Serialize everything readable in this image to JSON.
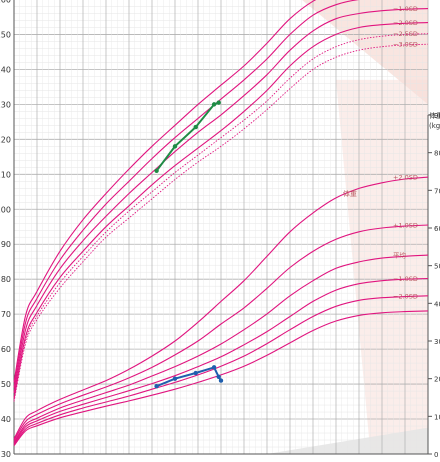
{
  "chart_data": {
    "type": "line",
    "left_axis": {
      "label": "",
      "unit": "",
      "range": [
        30,
        165
      ],
      "ticks": [
        30,
        40,
        50,
        60,
        70,
        80,
        90,
        100,
        110,
        120,
        130,
        140,
        150,
        160
      ]
    },
    "right_axis": {
      "label": "体重",
      "unit": "(kg)",
      "range": [
        0,
        95
      ],
      "ticks": [
        0,
        10,
        20,
        30,
        40,
        50,
        60,
        70,
        80,
        90
      ]
    },
    "x_axis": {
      "label": "",
      "range": [
        0,
        18
      ],
      "tick_labels_visible": false
    },
    "height_curves": [
      {
        "name": "+1.0SD",
        "points": [
          [
            0,
            50.5
          ],
          [
            0.5,
            69.5
          ],
          [
            1,
            76.5
          ],
          [
            2,
            88
          ],
          [
            3,
            97
          ],
          [
            4,
            104.5
          ],
          [
            5,
            111.5
          ],
          [
            6,
            118
          ],
          [
            7,
            124
          ],
          [
            8,
            130
          ],
          [
            9,
            135.5
          ],
          [
            10,
            141
          ],
          [
            11,
            147.5
          ],
          [
            12,
            154.5
          ],
          [
            13,
            159.5
          ],
          [
            14,
            162.5
          ],
          [
            15,
            163.8
          ],
          [
            16,
            164.2
          ],
          [
            17,
            164.5
          ],
          [
            18,
            164.6
          ]
        ]
      },
      {
        "name": "平均",
        "points": [
          [
            0,
            49
          ],
          [
            0.5,
            67.5
          ],
          [
            1,
            74.5
          ],
          [
            2,
            85.5
          ],
          [
            3,
            94
          ],
          [
            4,
            101.5
          ],
          [
            5,
            108
          ],
          [
            6,
            114.5
          ],
          [
            7,
            120.5
          ],
          [
            8,
            126
          ],
          [
            9,
            131.5
          ],
          [
            10,
            137
          ],
          [
            11,
            143
          ],
          [
            12,
            150
          ],
          [
            13,
            155.5
          ],
          [
            14,
            158.5
          ],
          [
            15,
            160
          ],
          [
            16,
            160.5
          ],
          [
            17,
            161
          ],
          [
            18,
            161
          ]
        ]
      },
      {
        "name": "−1.0SD",
        "points": [
          [
            0,
            47.5
          ],
          [
            0.5,
            65.5
          ],
          [
            1,
            72.5
          ],
          [
            2,
            83
          ],
          [
            3,
            91
          ],
          [
            4,
            98
          ],
          [
            5,
            104.5
          ],
          [
            6,
            110.5
          ],
          [
            7,
            116.5
          ],
          [
            8,
            122
          ],
          [
            9,
            127
          ],
          [
            10,
            132.5
          ],
          [
            11,
            138.5
          ],
          [
            12,
            145.5
          ],
          [
            13,
            151
          ],
          [
            14,
            154.5
          ],
          [
            15,
            156
          ],
          [
            16,
            156.8
          ],
          [
            17,
            157.2
          ],
          [
            18,
            157.4
          ]
        ]
      },
      {
        "name": "−2.0SD",
        "points": [
          [
            0,
            46
          ],
          [
            0.5,
            63.5
          ],
          [
            1,
            70.5
          ],
          [
            2,
            80.5
          ],
          [
            3,
            88
          ],
          [
            4,
            95
          ],
          [
            5,
            101
          ],
          [
            6,
            107
          ],
          [
            7,
            112.5
          ],
          [
            8,
            117.5
          ],
          [
            9,
            122.5
          ],
          [
            10,
            128
          ],
          [
            11,
            134
          ],
          [
            12,
            141
          ],
          [
            13,
            146.5
          ],
          [
            14,
            150
          ],
          [
            15,
            152
          ],
          [
            16,
            152.8
          ],
          [
            17,
            153.2
          ],
          [
            18,
            153.4
          ]
        ]
      },
      {
        "name": "−2.5SD",
        "points": [
          [
            0,
            45.5
          ],
          [
            0.5,
            62.5
          ],
          [
            1,
            69.5
          ],
          [
            2,
            79
          ],
          [
            3,
            86.5
          ],
          [
            4,
            93.5
          ],
          [
            5,
            99.5
          ],
          [
            6,
            105
          ],
          [
            7,
            110.5
          ],
          [
            8,
            115.5
          ],
          [
            9,
            120.5
          ],
          [
            10,
            125.5
          ],
          [
            11,
            131
          ],
          [
            12,
            137.5
          ],
          [
            13,
            143
          ],
          [
            14,
            146.5
          ],
          [
            15,
            148.5
          ],
          [
            16,
            149.5
          ],
          [
            17,
            150
          ],
          [
            18,
            150.2
          ]
        ]
      },
      {
        "name": "−3.0SD",
        "points": [
          [
            0,
            45
          ],
          [
            0.5,
            61.5
          ],
          [
            1,
            68.5
          ],
          [
            2,
            77.5
          ],
          [
            3,
            85
          ],
          [
            4,
            92
          ],
          [
            5,
            97.5
          ],
          [
            6,
            103
          ],
          [
            7,
            108.5
          ],
          [
            8,
            113.5
          ],
          [
            9,
            118
          ],
          [
            10,
            123
          ],
          [
            11,
            128.5
          ],
          [
            12,
            134.5
          ],
          [
            13,
            140
          ],
          [
            14,
            143.5
          ],
          [
            15,
            145.5
          ],
          [
            16,
            146.5
          ],
          [
            17,
            147
          ],
          [
            18,
            147.2
          ]
        ]
      }
    ],
    "weight_label": "体重",
    "weight_curves": [
      {
        "name": "+2.0SD",
        "points": [
          [
            0,
            4.0
          ],
          [
            0.5,
            9.5
          ],
          [
            1,
            11.5
          ],
          [
            2,
            14.5
          ],
          [
            3,
            17
          ],
          [
            4,
            19.5
          ],
          [
            5,
            22.5
          ],
          [
            6,
            26
          ],
          [
            7,
            30
          ],
          [
            8,
            35
          ],
          [
            9,
            40.5
          ],
          [
            10,
            46
          ],
          [
            11,
            52.5
          ],
          [
            12,
            59
          ],
          [
            13,
            64
          ],
          [
            14,
            68
          ],
          [
            15,
            70.5
          ],
          [
            16,
            72
          ],
          [
            17,
            73
          ],
          [
            18,
            73.5
          ]
        ]
      },
      {
        "name": "+1.0SD",
        "points": [
          [
            0,
            3.6
          ],
          [
            0.5,
            8.6
          ],
          [
            1,
            10.5
          ],
          [
            2,
            13.3
          ],
          [
            3,
            15.6
          ],
          [
            4,
            17.8
          ],
          [
            5,
            20.2
          ],
          [
            6,
            23
          ],
          [
            7,
            26.3
          ],
          [
            8,
            30
          ],
          [
            9,
            34.5
          ],
          [
            10,
            38.8
          ],
          [
            11,
            44
          ],
          [
            12,
            49.5
          ],
          [
            13,
            53.8
          ],
          [
            14,
            57
          ],
          [
            15,
            59
          ],
          [
            16,
            60
          ],
          [
            17,
            60.5
          ],
          [
            18,
            60.8
          ]
        ]
      },
      {
        "name": "平均",
        "points": [
          [
            0,
            3.1
          ],
          [
            0.5,
            7.8
          ],
          [
            1,
            9.5
          ],
          [
            2,
            12.2
          ],
          [
            3,
            14.3
          ],
          [
            4,
            16.3
          ],
          [
            5,
            18.3
          ],
          [
            6,
            20.7
          ],
          [
            7,
            23.2
          ],
          [
            8,
            26
          ],
          [
            9,
            29.2
          ],
          [
            10,
            33
          ],
          [
            11,
            37.2
          ],
          [
            12,
            42
          ],
          [
            13,
            46
          ],
          [
            14,
            49.3
          ],
          [
            15,
            51
          ],
          [
            16,
            52
          ],
          [
            17,
            52.5
          ],
          [
            18,
            52.8
          ]
        ]
      },
      {
        "name": "−1.0SD",
        "points": [
          [
            0,
            2.8
          ],
          [
            0.5,
            7.2
          ],
          [
            1,
            8.8
          ],
          [
            2,
            11.3
          ],
          [
            3,
            13.2
          ],
          [
            4,
            15
          ],
          [
            5,
            16.8
          ],
          [
            6,
            18.7
          ],
          [
            7,
            20.8
          ],
          [
            8,
            23.2
          ],
          [
            9,
            25.8
          ],
          [
            10,
            29
          ],
          [
            11,
            32.5
          ],
          [
            12,
            36.5
          ],
          [
            13,
            40.5
          ],
          [
            14,
            43.5
          ],
          [
            15,
            45.2
          ],
          [
            16,
            46
          ],
          [
            17,
            46.4
          ],
          [
            18,
            46.6
          ]
        ]
      },
      {
        "name": "−2.0SD",
        "points": [
          [
            0,
            2.5
          ],
          [
            0.5,
            6.6
          ],
          [
            1,
            8.1
          ],
          [
            2,
            10.4
          ],
          [
            3,
            12.2
          ],
          [
            4,
            13.8
          ],
          [
            5,
            15.4
          ],
          [
            6,
            17.2
          ],
          [
            7,
            19
          ],
          [
            8,
            21
          ],
          [
            9,
            23.3
          ],
          [
            10,
            26
          ],
          [
            11,
            29.3
          ],
          [
            12,
            33
          ],
          [
            13,
            36.5
          ],
          [
            14,
            39.2
          ],
          [
            15,
            40.8
          ],
          [
            16,
            41.5
          ],
          [
            17,
            41.8
          ],
          [
            18,
            42
          ]
        ]
      },
      {
        "name": "",
        "points": [
          [
            0,
            2.2
          ],
          [
            0.5,
            6.1
          ],
          [
            1,
            7.5
          ],
          [
            2,
            9.6
          ],
          [
            3,
            11.2
          ],
          [
            4,
            12.7
          ],
          [
            5,
            14.1
          ],
          [
            6,
            15.6
          ],
          [
            7,
            17.2
          ],
          [
            8,
            19
          ],
          [
            9,
            21
          ],
          [
            10,
            23.3
          ],
          [
            11,
            26.2
          ],
          [
            12,
            29.5
          ],
          [
            13,
            32.8
          ],
          [
            14,
            35.3
          ],
          [
            15,
            36.8
          ],
          [
            16,
            37.5
          ],
          [
            17,
            37.8
          ],
          [
            18,
            38
          ]
        ]
      }
    ],
    "patient_height": [
      [
        6.2,
        111
      ],
      [
        7.0,
        118
      ],
      [
        7.9,
        123.5
      ],
      [
        8.7,
        130
      ],
      [
        8.9,
        130.5
      ]
    ],
    "patient_weight": [
      [
        6.2,
        18
      ],
      [
        7.0,
        20
      ],
      [
        7.9,
        21.5
      ],
      [
        8.7,
        23
      ],
      [
        8.9,
        20.5
      ],
      [
        9.0,
        19.5
      ]
    ],
    "colors": {
      "curve": "#e0157f",
      "grid_minor": "#e6e6e6",
      "grid_major": "#b0b0b0",
      "shade": "#f7ded8",
      "height_marker": "#1e8c45",
      "weight_marker": "#1f5fae",
      "label_text": "#b8575f",
      "axis_text": "#333333"
    }
  }
}
